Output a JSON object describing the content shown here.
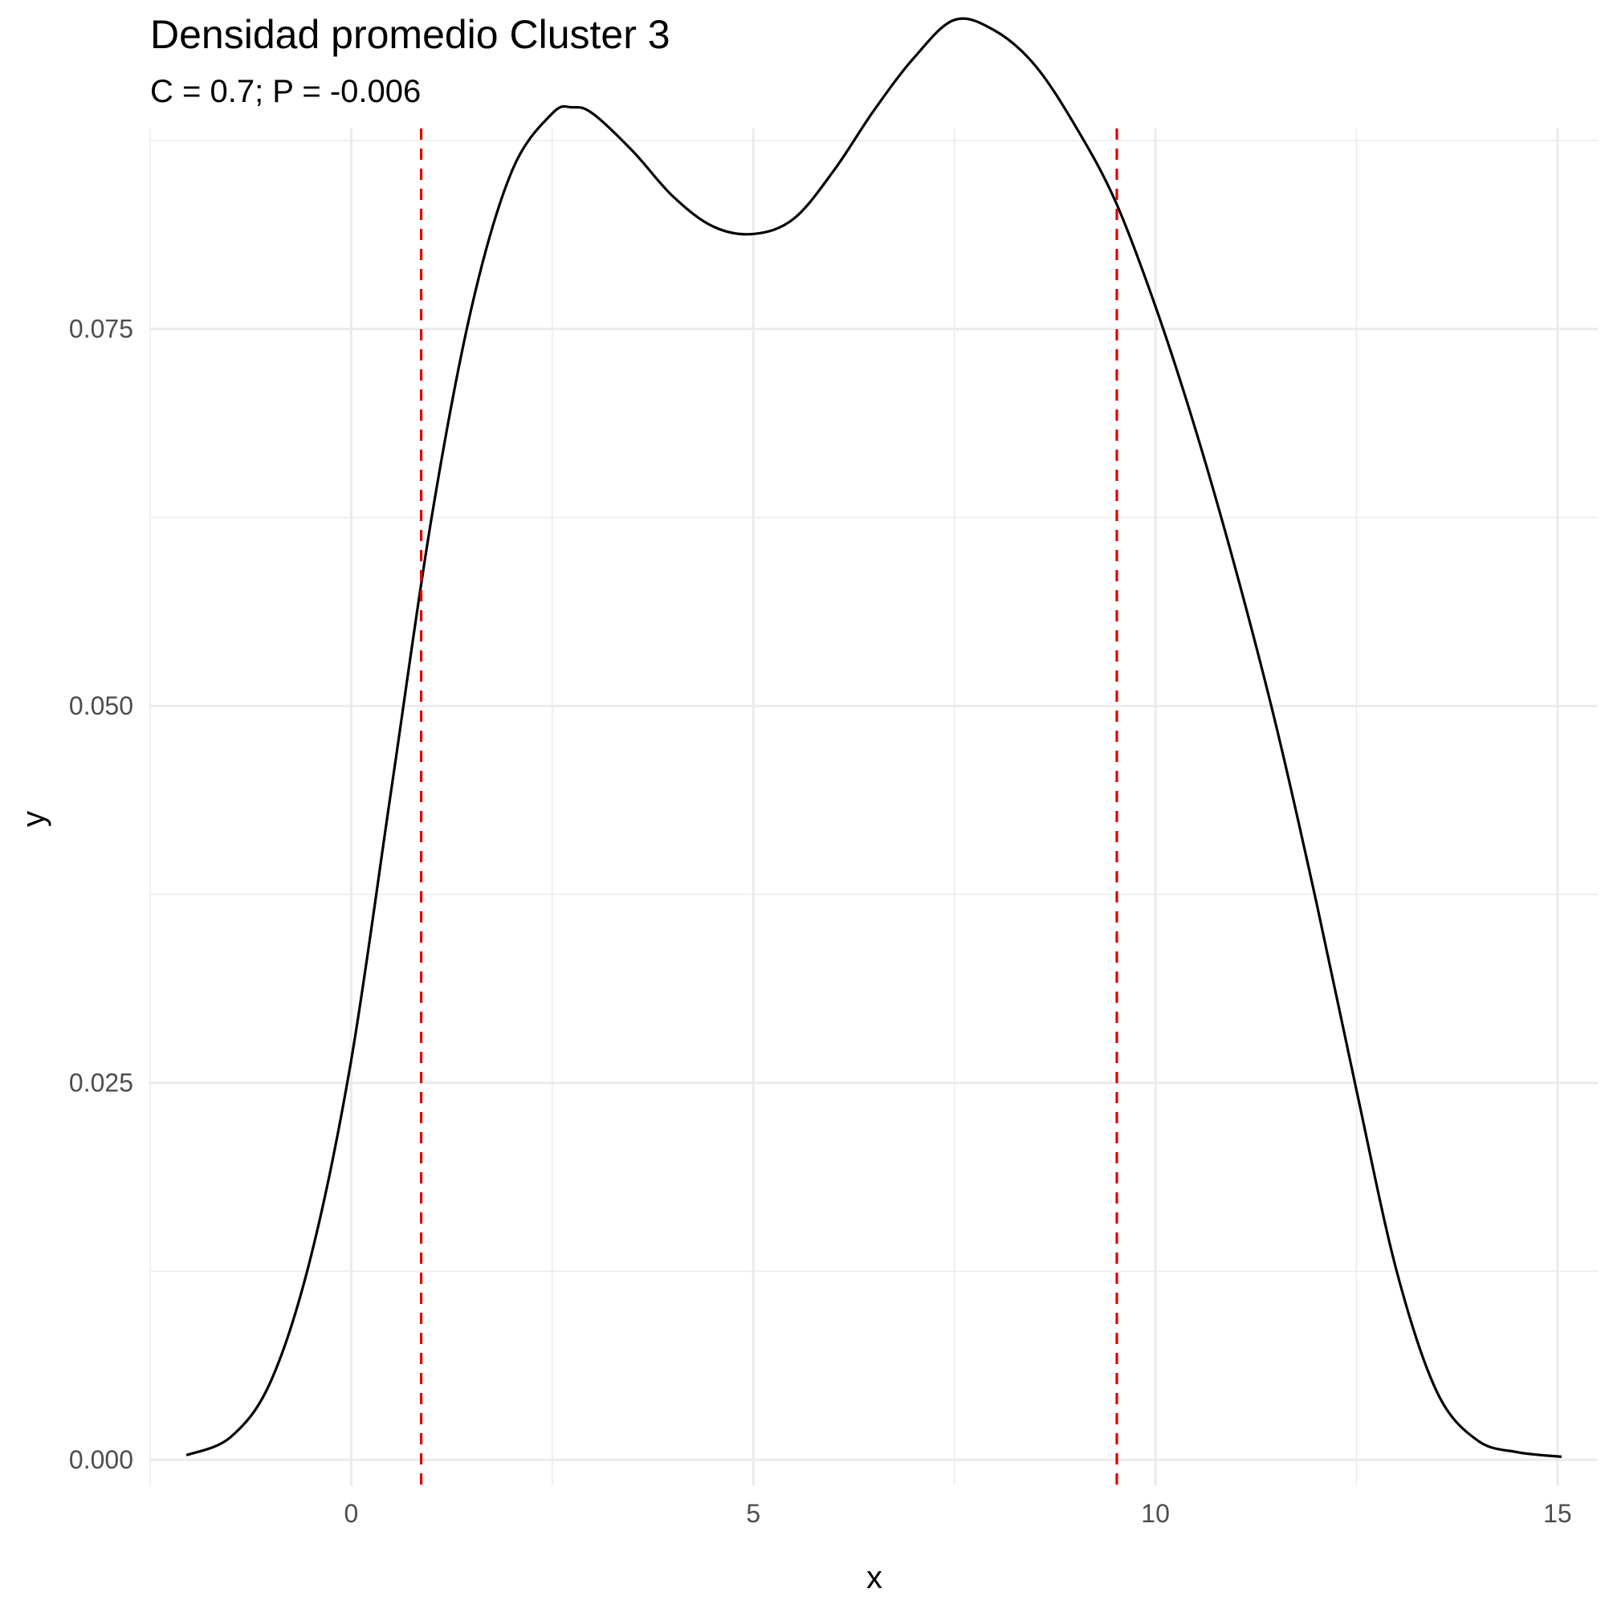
{
  "chart_data": {
    "type": "line",
    "title": "Densidad promedio Cluster 3",
    "subtitle": "C = 0.7; P = -0.006",
    "xlabel": "x",
    "ylabel": "y",
    "xlim": [
      -2.5,
      15.5
    ],
    "ylim": [
      -0.0017,
      0.0883
    ],
    "x_ticks": [
      0,
      5,
      10,
      15
    ],
    "x_tick_labels": [
      "0",
      "5",
      "10",
      "15"
    ],
    "y_ticks": [
      0.0,
      0.025,
      0.05,
      0.075
    ],
    "y_tick_labels": [
      "0.000",
      "0.025",
      "0.050",
      "0.075"
    ],
    "grid": true,
    "legend": "none",
    "series": [
      {
        "color": "#000000",
        "x": [
          -2.05,
          -1.5,
          -1.0,
          -0.5,
          0.0,
          0.5,
          1.0,
          1.5,
          2.0,
          2.5,
          2.75,
          3.0,
          3.5,
          4.0,
          4.5,
          5.0,
          5.5,
          6.0,
          6.5,
          7.0,
          7.5,
          8.0,
          8.5,
          9.0,
          9.5,
          10.0,
          10.5,
          11.0,
          11.5,
          12.0,
          12.5,
          13.0,
          13.5,
          14.0,
          14.5,
          15.05
        ],
        "y": [
          0.0003,
          0.0015,
          0.0052,
          0.0135,
          0.0265,
          0.0445,
          0.0625,
          0.0765,
          0.0855,
          0.0893,
          0.0897,
          0.0893,
          0.0868,
          0.0838,
          0.0818,
          0.0813,
          0.0823,
          0.0855,
          0.0895,
          0.093,
          0.0955,
          0.0948,
          0.0925,
          0.0885,
          0.0835,
          0.0765,
          0.0683,
          0.059,
          0.0487,
          0.037,
          0.0245,
          0.0125,
          0.0045,
          0.0013,
          0.0005,
          0.0002
        ]
      }
    ],
    "vlines": [
      {
        "x": 0.87,
        "color": "#e00000",
        "style": "dashed"
      },
      {
        "x": 9.52,
        "color": "#e00000",
        "style": "dashed"
      }
    ]
  }
}
